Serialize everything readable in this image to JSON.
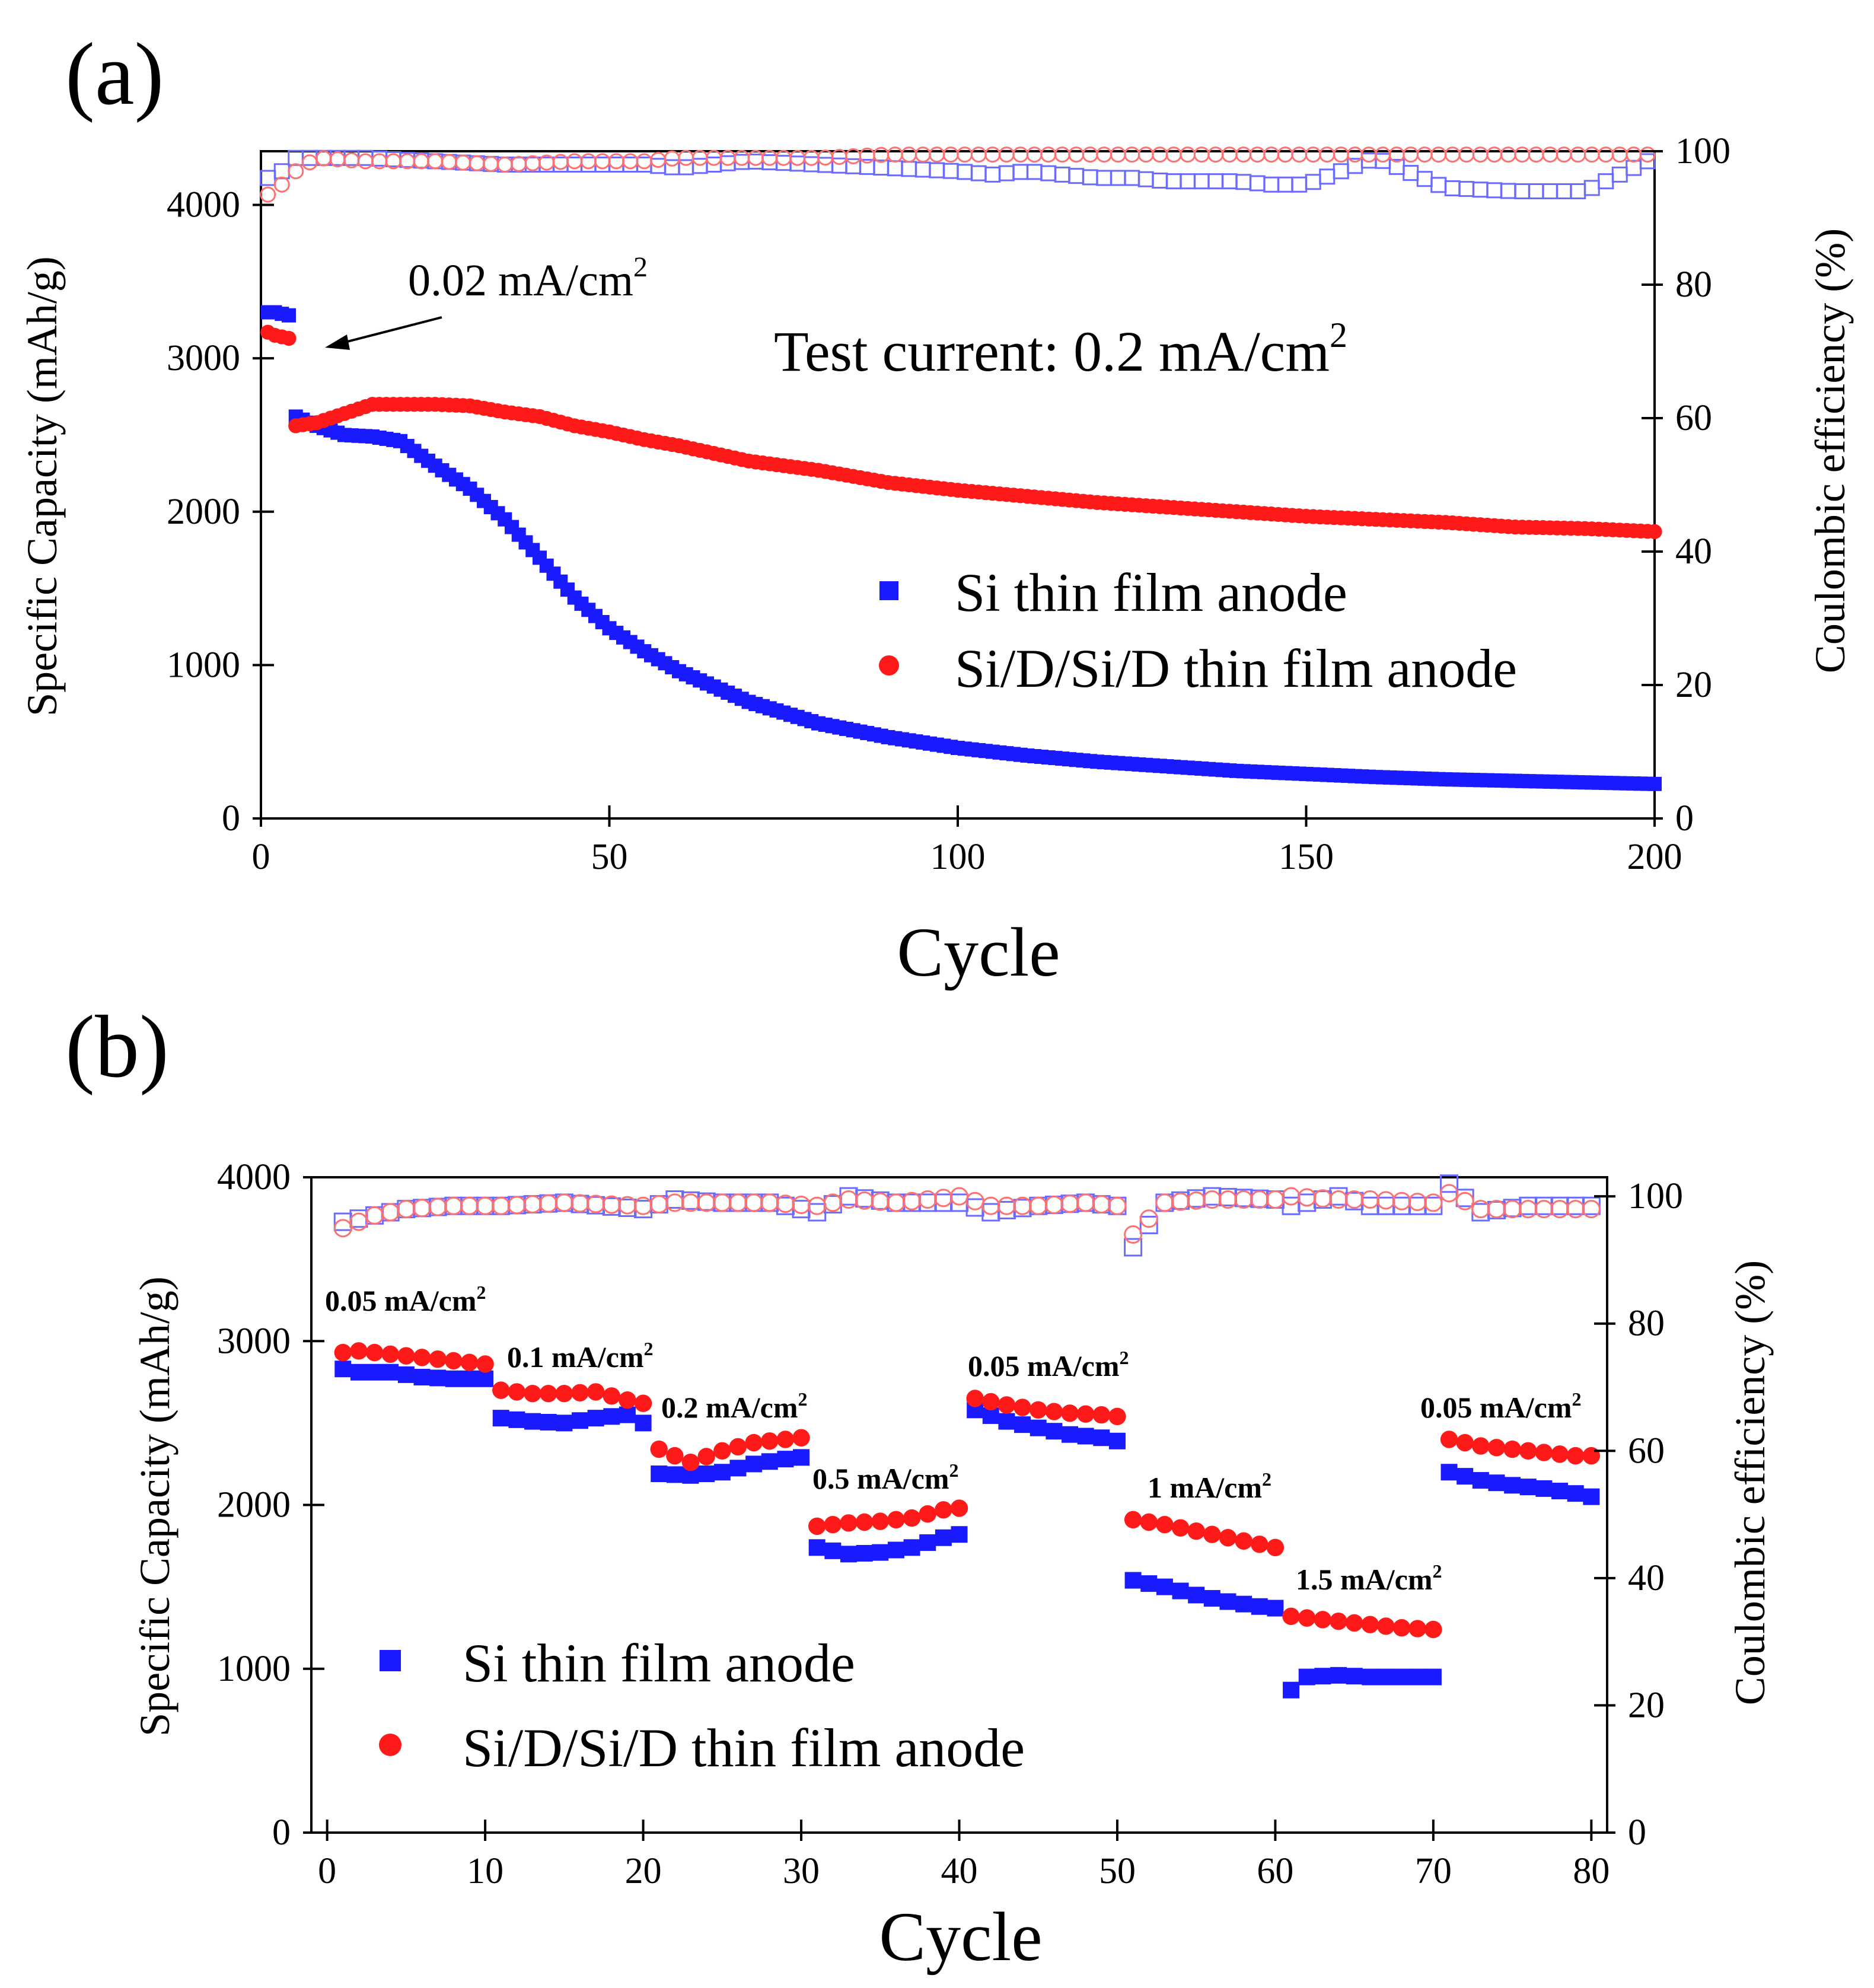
{
  "chart_data": [
    {
      "panel": "(a)",
      "type": "scatter",
      "xlabel": "Cycle",
      "ylabel": "Specific Capacity (mAh/g)",
      "y2label": "Coulombic efficiency (%)",
      "xlim": [
        0,
        200
      ],
      "ylim": [
        0,
        4350
      ],
      "y2lim": [
        0,
        100
      ],
      "xticks": [
        0,
        50,
        100,
        150,
        200
      ],
      "yticks": [
        0,
        1000,
        2000,
        3000,
        4000
      ],
      "y2ticks": [
        0,
        20,
        40,
        60,
        80,
        100
      ],
      "annotations": [
        {
          "text": "0.02 mA/cm",
          "superscript": "2"
        },
        {
          "text": "Test current: 0.2 mA/cm",
          "superscript": "2"
        }
      ],
      "legend": {
        "position": "center-right",
        "entries": [
          "Si thin film anode",
          "Si/D/Si/D thin film anode"
        ]
      },
      "colors": {
        "si": "#1a1aff",
        "sid": "#ff1a1a",
        "si_ce": "#6b6bff",
        "sid_ce": "#ff7070"
      },
      "series": [
        {
          "name": "Si thin film anode",
          "axis": "left",
          "marker": "filled-square",
          "x": [
            1,
            2,
            3,
            4,
            5,
            8,
            12,
            16,
            20,
            25,
            30,
            35,
            40,
            45,
            50,
            55,
            60,
            65,
            70,
            75,
            80,
            90,
            100,
            110,
            120,
            130,
            140,
            150,
            160,
            170,
            180,
            190,
            200
          ],
          "y": [
            3300,
            3300,
            3290,
            3280,
            2620,
            2560,
            2500,
            2490,
            2460,
            2300,
            2150,
            1950,
            1700,
            1440,
            1240,
            1090,
            960,
            860,
            760,
            690,
            620,
            530,
            460,
            410,
            370,
            340,
            310,
            290,
            270,
            255,
            245,
            235,
            225
          ]
        },
        {
          "name": "Si/D/Si/D thin film anode",
          "axis": "left",
          "marker": "filled-circle",
          "x": [
            1,
            2,
            3,
            4,
            5,
            8,
            12,
            16,
            20,
            25,
            30,
            35,
            40,
            45,
            50,
            55,
            60,
            65,
            70,
            75,
            80,
            90,
            100,
            110,
            120,
            130,
            140,
            150,
            160,
            170,
            180,
            190,
            200
          ],
          "y": [
            3170,
            3150,
            3140,
            3130,
            2560,
            2580,
            2640,
            2700,
            2700,
            2700,
            2690,
            2650,
            2620,
            2560,
            2520,
            2470,
            2430,
            2380,
            2330,
            2300,
            2270,
            2190,
            2140,
            2100,
            2060,
            2030,
            2000,
            1970,
            1950,
            1930,
            1900,
            1890,
            1870
          ]
        },
        {
          "name": "Si thin film anode CE",
          "axis": "right",
          "marker": "open-square",
          "x": [
            1,
            3,
            5,
            8,
            15,
            25,
            35,
            45,
            55,
            60,
            70,
            80,
            90,
            100,
            105,
            110,
            115,
            120,
            125,
            130,
            135,
            140,
            145,
            150,
            160,
            170,
            180,
            190,
            200
          ],
          "y": [
            96,
            97,
            99,
            99,
            99,
            98.5,
            98,
            98,
            98,
            97.5,
            98.5,
            98,
            97.5,
            97,
            96.5,
            97,
            96.5,
            96,
            96,
            95.5,
            95.5,
            95.5,
            95,
            95,
            99,
            94.5,
            94,
            94,
            99
          ]
        },
        {
          "name": "Si/D/Si/D thin film anode CE",
          "axis": "right",
          "marker": "open-circle",
          "x": [
            1,
            3,
            5,
            8,
            15,
            25,
            35,
            45,
            55,
            60,
            70,
            80,
            90,
            100,
            110,
            120,
            130,
            140,
            150,
            160,
            170,
            180,
            190,
            200
          ],
          "y": [
            93.5,
            95,
            97,
            99,
            98.5,
            98.5,
            98,
            98.5,
            98.5,
            99,
            99,
            99,
            99.5,
            99.5,
            99.5,
            99.5,
            99.5,
            99.5,
            99.5,
            99.5,
            99.5,
            99.5,
            99.5,
            99.5
          ]
        }
      ]
    },
    {
      "panel": "(b)",
      "type": "scatter",
      "xlabel": "Cycle",
      "ylabel": "Specific Capacity (mAh/g)",
      "y2label": "Coulombic efficiency (%)",
      "xlim": [
        -1,
        81
      ],
      "ylim": [
        0,
        4000
      ],
      "y2lim": [
        0,
        103
      ],
      "xticks": [
        0,
        10,
        20,
        30,
        40,
        50,
        60,
        70,
        80
      ],
      "yticks": [
        0,
        1000,
        2000,
        3000,
        4000
      ],
      "y2ticks": [
        0,
        20,
        40,
        60,
        80,
        100
      ],
      "rate_labels": [
        {
          "text": "0.05 mA/cm",
          "superscript": "2"
        },
        {
          "text": "0.1 mA/cm",
          "superscript": "2"
        },
        {
          "text": "0.2 mA/cm",
          "superscript": "2"
        },
        {
          "text": "0.5 mA/cm",
          "superscript": "2"
        },
        {
          "text": "0.05 mA/cm",
          "superscript": "2"
        },
        {
          "text": "1 mA/cm",
          "superscript": "2"
        },
        {
          "text": "1.5 mA/cm",
          "superscript": "2"
        },
        {
          "text": "0.05 mA/cm",
          "superscript": "2"
        }
      ],
      "legend": {
        "position": "bottom-left",
        "entries": [
          "Si thin film anode",
          "Si/D/Si/D thin film anode"
        ]
      },
      "colors": {
        "si": "#1a1aff",
        "sid": "#ff1a1a",
        "si_ce": "#6b6bff",
        "sid_ce": "#ff7070"
      },
      "series": [
        {
          "name": "Si thin film anode",
          "axis": "left",
          "marker": "filled-square",
          "x": [
            1,
            2,
            4,
            6,
            8,
            10,
            11,
            13,
            15,
            17,
            19,
            20,
            21,
            23,
            25,
            27,
            29,
            30,
            31,
            33,
            35,
            37,
            39,
            40,
            41,
            43,
            45,
            47,
            49,
            50,
            51,
            53,
            55,
            57,
            59,
            60,
            61,
            62,
            64,
            66,
            68,
            70,
            71,
            73,
            75,
            77,
            79,
            80
          ],
          "y": [
            2830,
            2810,
            2810,
            2780,
            2770,
            2770,
            2530,
            2510,
            2500,
            2530,
            2550,
            2500,
            2190,
            2180,
            2200,
            2250,
            2280,
            2290,
            1740,
            1700,
            1710,
            1740,
            1800,
            1820,
            2580,
            2510,
            2470,
            2430,
            2410,
            2390,
            1540,
            1500,
            1450,
            1410,
            1380,
            1370,
            870,
            950,
            960,
            950,
            950,
            950,
            2200,
            2150,
            2120,
            2100,
            2070,
            2050
          ]
        },
        {
          "name": "Si/D/Si/D thin film anode",
          "axis": "left",
          "marker": "filled-circle",
          "x": [
            1,
            2,
            4,
            6,
            8,
            10,
            11,
            13,
            15,
            17,
            19,
            20,
            21,
            23,
            25,
            27,
            29,
            30,
            31,
            33,
            35,
            37,
            39,
            40,
            41,
            43,
            45,
            47,
            49,
            50,
            51,
            53,
            55,
            57,
            59,
            60,
            61,
            62,
            64,
            66,
            68,
            70,
            71,
            73,
            75,
            77,
            79,
            80
          ],
          "y": [
            2930,
            2940,
            2920,
            2900,
            2880,
            2860,
            2700,
            2680,
            2680,
            2690,
            2640,
            2620,
            2340,
            2260,
            2330,
            2380,
            2400,
            2410,
            1870,
            1890,
            1900,
            1920,
            1970,
            1980,
            2650,
            2610,
            2580,
            2560,
            2550,
            2540,
            1910,
            1880,
            1840,
            1800,
            1760,
            1740,
            1320,
            1310,
            1290,
            1270,
            1250,
            1240,
            2400,
            2360,
            2340,
            2320,
            2300,
            2300
          ]
        },
        {
          "name": "Si thin film anode CE",
          "axis": "right",
          "marker": "open-square",
          "x": [
            1,
            3,
            5,
            8,
            11,
            15,
            20,
            22,
            25,
            28,
            31,
            33,
            36,
            40,
            42,
            45,
            48,
            50,
            51,
            53,
            56,
            60,
            61,
            64,
            66,
            70,
            71,
            73,
            76,
            80
          ],
          "y": [
            96,
            97,
            98,
            98.5,
            98.5,
            99,
            98,
            99.5,
            99,
            99,
            97.5,
            100,
            99,
            99,
            97.5,
            98.5,
            99,
            98.5,
            92,
            99,
            100,
            99.5,
            98.5,
            100,
            98.5,
            98.5,
            102,
            97.5,
            98.5,
            98.5
          ]
        },
        {
          "name": "Si/D/Si/D thin film anode CE",
          "axis": "right",
          "marker": "open-circle",
          "x": [
            1,
            3,
            5,
            8,
            11,
            15,
            20,
            22,
            25,
            28,
            31,
            33,
            36,
            40,
            42,
            45,
            48,
            50,
            51,
            53,
            56,
            60,
            61,
            64,
            66,
            70,
            71,
            73,
            76,
            80
          ],
          "y": [
            95,
            97,
            98,
            98.5,
            98.5,
            99,
            98.5,
            99,
            99,
            99,
            98.5,
            99.5,
            99,
            100,
            98.5,
            98.5,
            99,
            98.5,
            94,
            99,
            99.5,
            99.5,
            100,
            99.5,
            99.5,
            99,
            100.5,
            98,
            98,
            98
          ]
        }
      ]
    }
  ]
}
